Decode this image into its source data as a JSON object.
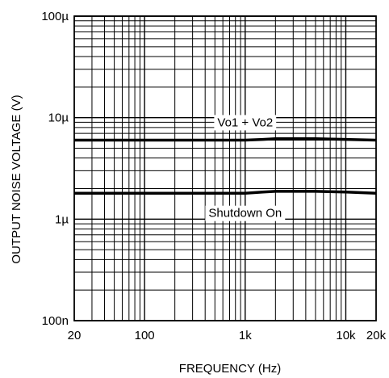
{
  "chart_data": {
    "type": "line",
    "title": "",
    "xlabel": "FREQUENCY (Hz)",
    "ylabel": "OUTPUT NOISE VOLTAGE (V)",
    "x_scale": "log",
    "y_scale": "log",
    "xlim": [
      20,
      20000
    ],
    "ylim": [
      1e-07,
      0.0001
    ],
    "grid": true,
    "legend": "none",
    "x_ticks": [
      {
        "value": 20,
        "label": "20"
      },
      {
        "value": 100,
        "label": "100"
      },
      {
        "value": 1000,
        "label": "1k"
      },
      {
        "value": 10000,
        "label": "10k"
      },
      {
        "value": 20000,
        "label": "20k"
      }
    ],
    "y_ticks": [
      {
        "value": 1e-07,
        "label": "100n"
      },
      {
        "value": 1e-06,
        "label": "1µ"
      },
      {
        "value": 1e-05,
        "label": "10µ"
      },
      {
        "value": 0.0001,
        "label": "100µ"
      }
    ],
    "annotations": [
      {
        "text": "Vo1 + Vo2",
        "x": 1000,
        "y": 9e-06
      },
      {
        "text": "Shutdown On",
        "x": 1000,
        "y": 1.15e-06
      }
    ],
    "series": [
      {
        "x": [
          20,
          50,
          100,
          200,
          500,
          1000,
          1500,
          2000,
          3000,
          5000,
          10000,
          20000
        ],
        "values": [
          6e-06,
          6e-06,
          6e-06,
          6e-06,
          6e-06,
          6e-06,
          6.1e-06,
          6.2e-06,
          6.2e-06,
          6.2e-06,
          6.1e-06,
          6e-06
        ]
      },
      {
        "x": [
          20,
          50,
          100,
          200,
          500,
          1000,
          1500,
          2000,
          3000,
          5000,
          10000,
          20000
        ],
        "values": [
          1.8e-06,
          1.8e-06,
          1.8e-06,
          1.8e-06,
          1.8e-06,
          1.8e-06,
          1.85e-06,
          1.88e-06,
          1.88e-06,
          1.88e-06,
          1.85e-06,
          1.8e-06
        ]
      }
    ]
  }
}
